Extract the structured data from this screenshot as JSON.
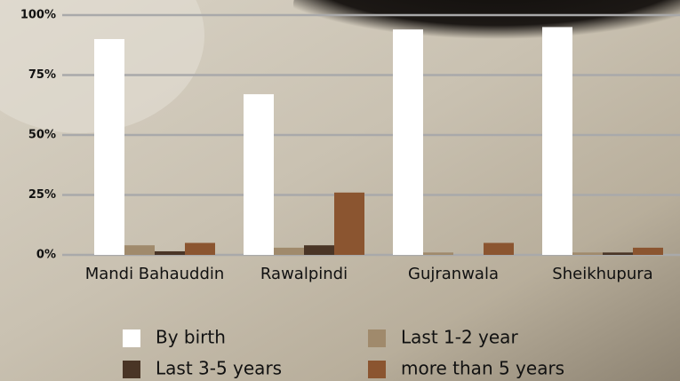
{
  "chart_data": {
    "type": "bar",
    "categories": [
      "Mandi Bahauddin",
      "Rawalpindi",
      "Gujranwala",
      "Sheikhupura"
    ],
    "series": [
      {
        "name": "By birth",
        "color": "#ffffff",
        "values": [
          90,
          67,
          94,
          95
        ]
      },
      {
        "name": "Last 1-2 year",
        "color": "#a08a6c",
        "values": [
          4,
          3,
          1,
          1
        ]
      },
      {
        "name": "Last 3-5 years",
        "color": "#4a3526",
        "values": [
          1.5,
          4,
          0,
          1
        ]
      },
      {
        "name": "more than 5 years",
        "color": "#8b5530",
        "values": [
          5,
          26,
          5,
          3
        ]
      }
    ],
    "ylim": [
      0,
      100
    ],
    "yticks": [
      {
        "value": 0,
        "label": "0%"
      },
      {
        "value": 25,
        "label": "25%"
      },
      {
        "value": 50,
        "label": "50%"
      },
      {
        "value": 75,
        "label": "75%"
      },
      {
        "value": 100,
        "label": "100%"
      }
    ],
    "grid": true
  }
}
